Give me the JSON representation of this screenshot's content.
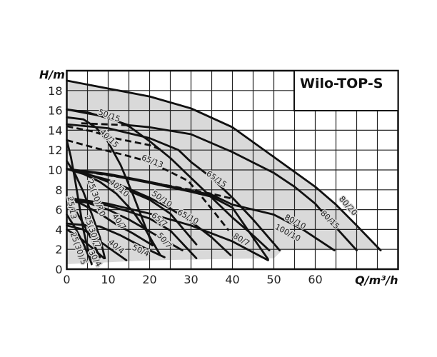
{
  "chart_data": {
    "type": "line",
    "title": "Wilo-TOP-S",
    "xlabel": "Q/m³/h",
    "ylabel": "H/m",
    "xlim": [
      0,
      80
    ],
    "ylim": [
      0,
      20
    ],
    "xticks": [
      0,
      10,
      20,
      30,
      40,
      50,
      60
    ],
    "yticks": [
      0,
      2,
      4,
      6,
      8,
      10,
      12,
      14,
      16,
      18
    ],
    "grid": true,
    "legend": "none",
    "colors": {
      "line": "#111111",
      "envelope": "#d9d9d9",
      "grid": "#222222"
    },
    "envelope": [
      [
        0,
        0.5
      ],
      [
        0,
        19
      ],
      [
        10,
        18.2
      ],
      [
        20,
        17.4
      ],
      [
        30,
        16.2
      ],
      [
        40,
        14.3
      ],
      [
        50,
        11.3
      ],
      [
        60,
        8.3
      ],
      [
        65,
        6.5
      ],
      [
        70,
        4.4
      ],
      [
        75.8,
        1.9
      ],
      [
        52,
        1.9
      ],
      [
        50,
        1.1
      ],
      [
        20,
        0.9
      ],
      [
        0,
        0.5
      ]
    ],
    "series": [
      {
        "name": "80/20",
        "style": "solid",
        "points": [
          [
            0,
            19
          ],
          [
            10,
            18.2
          ],
          [
            20,
            17.4
          ],
          [
            30,
            16.2
          ],
          [
            40,
            14.3
          ],
          [
            50,
            11.3
          ],
          [
            60,
            8.3
          ],
          [
            65,
            6.5
          ],
          [
            70,
            4.4
          ],
          [
            75.8,
            1.9
          ]
        ]
      },
      {
        "name": "80/15",
        "style": "solid",
        "points": [
          [
            0,
            16.1
          ],
          [
            5,
            15.8
          ],
          [
            10,
            15.2
          ],
          [
            15,
            14.5
          ],
          [
            20,
            14.3
          ],
          [
            30,
            13.6
          ],
          [
            40,
            11.8
          ],
          [
            50,
            9.7
          ],
          [
            55,
            8.3
          ],
          [
            60,
            6.6
          ],
          [
            65,
            4.2
          ],
          [
            70,
            1.9
          ]
        ]
      },
      {
        "name": "50/15",
        "style": "solid",
        "points": [
          [
            0,
            16.1
          ],
          [
            10,
            15.3
          ],
          [
            15,
            14.4
          ],
          [
            20,
            12.9
          ],
          [
            25,
            11.2
          ],
          [
            30,
            9.2
          ],
          [
            35,
            7.2
          ],
          [
            40,
            5.2
          ],
          [
            45,
            3.4
          ],
          [
            48.9,
            1.9
          ]
        ]
      },
      {
        "name": "65/15",
        "style": "solid",
        "points": [
          [
            0,
            14.6
          ],
          [
            10,
            14.2
          ],
          [
            20,
            13.2
          ],
          [
            27,
            12
          ],
          [
            30,
            10.8
          ],
          [
            35,
            9.2
          ],
          [
            40,
            7.2
          ],
          [
            45,
            5
          ],
          [
            51.4,
            1.9
          ]
        ]
      },
      {
        "name": "40/15",
        "style": "solid",
        "points": [
          [
            0,
            15.3
          ],
          [
            4,
            15.1
          ],
          [
            7,
            14.3
          ],
          [
            10,
            12.8
          ],
          [
            13,
            10.5
          ],
          [
            16,
            7.5
          ],
          [
            18.5,
            4.8
          ],
          [
            20.7,
            2.4
          ]
        ]
      },
      {
        "name": "40/10",
        "style": "solid",
        "points": [
          [
            0,
            10.1
          ],
          [
            4,
            9.6
          ],
          [
            8,
            8.8
          ],
          [
            12,
            7.6
          ],
          [
            16,
            5.8
          ],
          [
            19,
            4
          ],
          [
            22.6,
            1.4
          ]
        ]
      },
      {
        "name": "50/10",
        "style": "solid",
        "points": [
          [
            0,
            10.1
          ],
          [
            5,
            9.6
          ],
          [
            10,
            8.8
          ],
          [
            15,
            7.9
          ],
          [
            20,
            7
          ],
          [
            25,
            5.6
          ],
          [
            31.3,
            2.5
          ]
        ]
      },
      {
        "name": "65/10",
        "style": "solid",
        "points": [
          [
            0,
            10.1
          ],
          [
            10,
            9
          ],
          [
            20,
            7.2
          ],
          [
            25,
            6.1
          ],
          [
            30,
            4.8
          ],
          [
            35,
            3.2
          ],
          [
            39.6,
            1.4
          ]
        ]
      },
      {
        "name": "80/10",
        "style": "solid",
        "points": [
          [
            0,
            10.1
          ],
          [
            10,
            9.6
          ],
          [
            20,
            8.8
          ],
          [
            30,
            7.9
          ],
          [
            35,
            7.5
          ],
          [
            40,
            6.5
          ],
          [
            50,
            5.5
          ],
          [
            57,
            4
          ],
          [
            64.6,
            1.9
          ]
        ]
      },
      {
        "name": "100/10",
        "style": "solid",
        "points": [
          [
            0,
            10.1
          ],
          [
            10,
            9.5
          ],
          [
            20,
            8.7
          ],
          [
            30,
            7.8
          ],
          [
            35,
            7.3
          ],
          [
            40,
            6.2
          ],
          [
            48.6,
            1
          ]
        ]
      },
      {
        "name": "25(30)/10",
        "style": "solid",
        "points": [
          [
            0,
            10.9
          ],
          [
            2,
            9.6
          ],
          [
            4,
            7.8
          ],
          [
            6,
            5.6
          ],
          [
            8,
            3.2
          ],
          [
            9.2,
            1.1
          ]
        ]
      },
      {
        "name": "25/13",
        "style": "solid",
        "points": [
          [
            0,
            13
          ],
          [
            1,
            11.3
          ],
          [
            2,
            9
          ],
          [
            3,
            6.5
          ],
          [
            4,
            4
          ],
          [
            5,
            2.2
          ],
          [
            6,
            0.5
          ]
        ]
      },
      {
        "name": "40/7",
        "style": "solid",
        "points": [
          [
            0,
            7
          ],
          [
            3,
            6.7
          ],
          [
            8,
            5.6
          ],
          [
            12,
            4.5
          ],
          [
            16,
            3.6
          ],
          [
            20.7,
            2.4
          ]
        ]
      },
      {
        "name": "65/7",
        "style": "solid",
        "points": [
          [
            0,
            7.1
          ],
          [
            10,
            6.4
          ],
          [
            15,
            5.8
          ],
          [
            20,
            5.1
          ],
          [
            25,
            3.9
          ],
          [
            31.3,
            1.1
          ]
        ]
      },
      {
        "name": "50/7",
        "style": "solid",
        "points": [
          [
            0,
            7
          ],
          [
            5,
            6.7
          ],
          [
            10,
            6
          ],
          [
            15,
            5
          ],
          [
            20,
            3.8
          ],
          [
            25,
            2.6
          ],
          [
            27.9,
            1.9
          ]
        ]
      },
      {
        "name": "80/7",
        "style": "solid",
        "points": [
          [
            0,
            7.2
          ],
          [
            10,
            6.6
          ],
          [
            20,
            5.6
          ],
          [
            30,
            4.4
          ],
          [
            40,
            2.8
          ],
          [
            48.6,
            0.9
          ]
        ]
      },
      {
        "name": "25(30)/7",
        "style": "solid",
        "points": [
          [
            0,
            6.8
          ],
          [
            2,
            6
          ],
          [
            4,
            4.6
          ],
          [
            6,
            3
          ],
          [
            8,
            1.2
          ]
        ]
      },
      {
        "name": "40/4",
        "style": "solid",
        "points": [
          [
            0,
            4.4
          ],
          [
            4,
            4
          ],
          [
            8,
            2.8
          ],
          [
            11,
            1.9
          ],
          [
            14.4,
            0.9
          ]
        ]
      },
      {
        "name": "50/4",
        "style": "solid",
        "points": [
          [
            0,
            4.6
          ],
          [
            8,
            4.3
          ],
          [
            13,
            3.4
          ],
          [
            18,
            2.3
          ],
          [
            23.6,
            1.2
          ]
        ]
      },
      {
        "name": "25(30)/5",
        "style": "solid",
        "points": [
          [
            0,
            5.5
          ],
          [
            2,
            4.2
          ],
          [
            4,
            2.6
          ],
          [
            6,
            0.6
          ]
        ]
      },
      {
        "name": "30/4",
        "style": "solid",
        "points": [
          [
            0,
            4
          ],
          [
            3,
            3.2
          ],
          [
            6,
            2.2
          ],
          [
            9,
            1.1
          ]
        ]
      },
      {
        "name": "65/13",
        "style": "dashed",
        "points": [
          [
            0,
            13
          ],
          [
            7,
            12.2
          ],
          [
            14,
            11.5
          ],
          [
            18.4,
            11
          ],
          [
            24,
            10
          ],
          [
            29.3,
            8.9
          ],
          [
            32,
            7.6
          ],
          [
            35.5,
            5.8
          ],
          [
            39.1,
            3.9
          ]
        ]
      },
      {
        "style": "dashed",
        "points": [
          [
            0,
            14.4
          ],
          [
            6,
            13.9
          ],
          [
            11.5,
            13.2
          ],
          [
            20,
            12.5
          ],
          [
            23,
            12
          ]
        ]
      },
      {
        "style": "dashed",
        "points": [
          [
            3.5,
            14.7
          ],
          [
            15,
            14.5
          ]
        ]
      },
      {
        "style": "dashed",
        "points": [
          [
            0,
            10.1
          ],
          [
            8,
            9.6
          ],
          [
            18.4,
            8.9
          ],
          [
            29.9,
            8
          ],
          [
            35,
            7.6
          ],
          [
            40,
            7.1
          ]
        ]
      }
    ]
  }
}
